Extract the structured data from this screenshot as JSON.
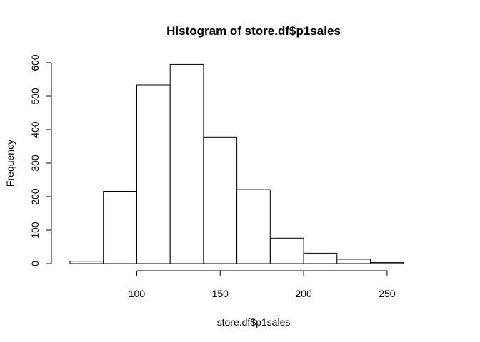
{
  "chart_data": {
    "type": "bar",
    "title": "Histogram of store.df$p1sales",
    "xlabel": "store.df$p1sales",
    "ylabel": "Frequency",
    "bin_edges": [
      60,
      80,
      100,
      120,
      140,
      160,
      180,
      200,
      220,
      240,
      260,
      280
    ],
    "values": [
      7,
      216,
      534,
      595,
      378,
      221,
      76,
      31,
      13,
      3,
      0
    ],
    "xlim": [
      60,
      280
    ],
    "ylim": [
      0,
      600
    ],
    "x_ticks": [
      100,
      150,
      200,
      250
    ],
    "y_ticks": [
      0,
      100,
      200,
      300,
      400,
      500,
      600
    ],
    "grid": false,
    "legend": "none"
  },
  "colors": {
    "bar_fill": "#ffffff",
    "bar_stroke": "#000000",
    "background": "#ffffff"
  }
}
